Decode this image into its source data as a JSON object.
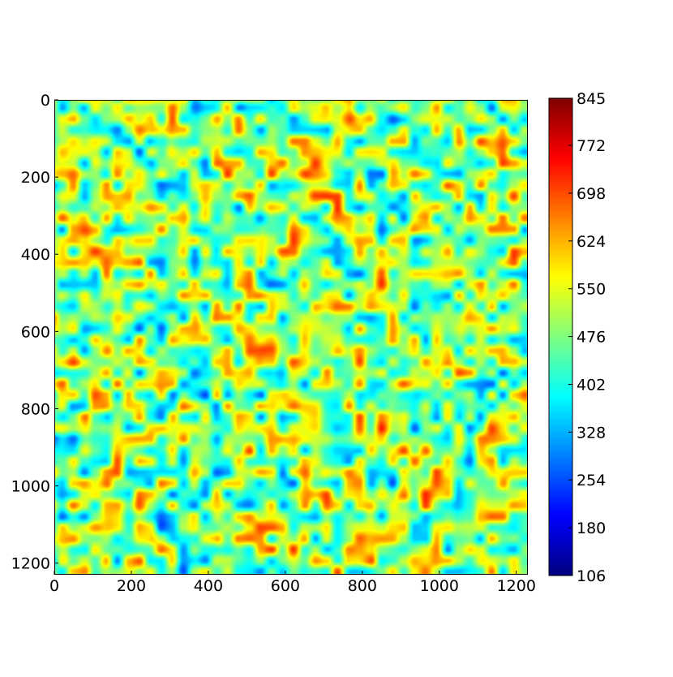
{
  "chart_data": {
    "type": "heatmap",
    "title": "",
    "xlabel": "",
    "ylabel": "",
    "colormap": "jet",
    "colormap_stops": [
      "#00007f",
      "#0000ff",
      "#007fff",
      "#00ffff",
      "#7fff7f",
      "#ffff00",
      "#ff7f00",
      "#ff0000",
      "#7f0000"
    ],
    "xlim": [
      0,
      1230
    ],
    "ylim": [
      1230,
      0
    ],
    "x_ticks": [
      0,
      200,
      400,
      600,
      800,
      1000,
      1200
    ],
    "x_tick_labels": [
      "0",
      "200",
      "400",
      "600",
      "800",
      "1000",
      "1200"
    ],
    "y_ticks": [
      0,
      200,
      400,
      600,
      800,
      1000,
      1200
    ],
    "y_tick_labels": [
      "0",
      "200",
      "400",
      "600",
      "800",
      "1000",
      "1200"
    ],
    "colorbar": {
      "range": [
        106,
        845
      ],
      "ticks": [
        106,
        180,
        254,
        328,
        402,
        476,
        550,
        624,
        698,
        772,
        845
      ],
      "tick_labels": [
        "106",
        "180",
        "254",
        "328",
        "402",
        "476",
        "550",
        "624",
        "698",
        "772",
        "845"
      ]
    },
    "field": {
      "description_type": "smooth random noise",
      "mean_value": 490,
      "std_value": 120
    }
  }
}
